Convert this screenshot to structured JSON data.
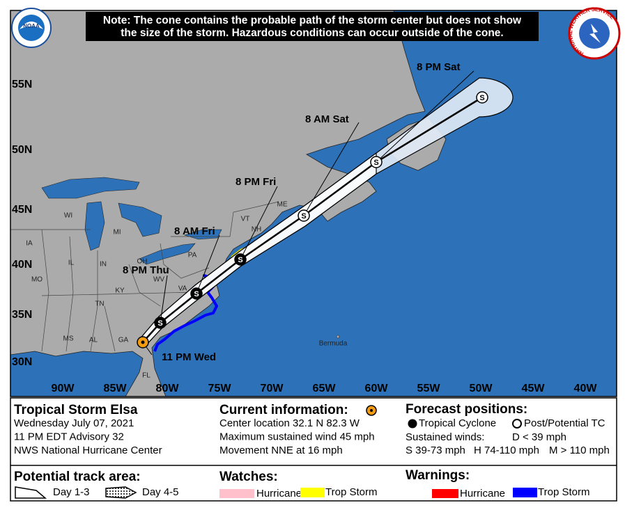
{
  "note": {
    "line1": "Note: The cone contains the probable path of the storm center but does not show",
    "line2": "the size of the storm. Hazardous conditions can occur outside of the cone."
  },
  "logos": {
    "noaa": "NOAA",
    "nws": "NATIONAL WEATHER SERVICE"
  },
  "map": {
    "latitude_labels": [
      "55N",
      "50N",
      "45N",
      "40N",
      "35N",
      "30N"
    ],
    "longitude_labels": [
      "90W",
      "85W",
      "80W",
      "75W",
      "70W",
      "65W",
      "60W",
      "55W",
      "50W",
      "45W",
      "40W"
    ],
    "state_labels": [
      "WI",
      "MI",
      "IA",
      "IL",
      "IN",
      "OH",
      "PA",
      "MO",
      "KY",
      "WV",
      "VA",
      "TN",
      "MS",
      "AL",
      "GA",
      "FL",
      "ME",
      "VT",
      "NH"
    ],
    "place_labels": [
      "Bermuda"
    ],
    "storm_symbol": "S",
    "forecast_points": [
      "11 PM Wed",
      "8 PM Thu",
      "8 AM Fri",
      "8 PM Fri",
      "8 AM Sat",
      "8 PM Sat"
    ]
  },
  "storm_info": {
    "title": "Tropical Storm Elsa",
    "lines": [
      "Wednesday July 07, 2021",
      "11 PM EDT Advisory 32",
      "NWS National Hurricane Center"
    ]
  },
  "current_information": {
    "title": "Current information:",
    "lines": [
      "Center location 32.1 N 82.3 W",
      "Maximum sustained wind 45 mph",
      "Movement NNE at 16 mph"
    ]
  },
  "forecast_positions": {
    "title": "Forecast positions:",
    "tropical": "Tropical Cyclone",
    "post": "Post/Potential TC",
    "winds_title": "Sustained winds:",
    "winds": [
      "D < 39 mph",
      "S 39-73 mph",
      "H 74-110 mph",
      "M > 110 mph"
    ]
  },
  "potential_track_area": {
    "title": "Potential track area:",
    "day13": "Day 1-3",
    "day45": "Day 4-5"
  },
  "watches": {
    "title": "Watches:",
    "hurricane": "Hurricane",
    "trop_storm": "Trop Storm"
  },
  "warnings": {
    "title": "Warnings:",
    "hurricane": "Hurricane",
    "trop_storm": "Trop Storm"
  }
}
